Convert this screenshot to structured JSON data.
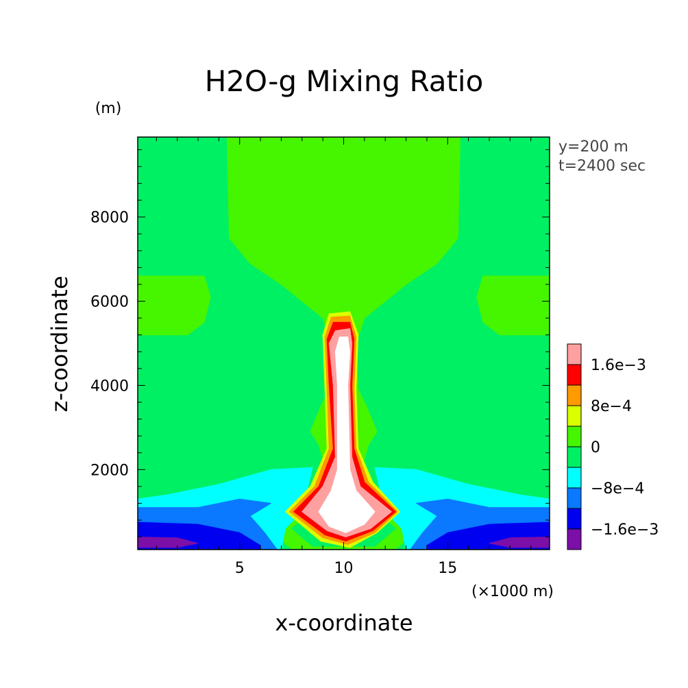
{
  "chart_data": {
    "type": "heatmap",
    "title": "H2O-g Mixing Ratio",
    "xlabel": "x-coordinate",
    "ylabel": "z-coordinate",
    "x_unit": "(×1000 m)",
    "y_unit": "(m)",
    "annotations": [
      "y=200 m",
      "t=2400 sec"
    ],
    "xlim": [
      0.1,
      19.9
    ],
    "ylim": [
      100,
      9900
    ],
    "x_ticks": [
      5,
      10,
      15
    ],
    "x_tick_labels": [
      "5",
      "10",
      "15"
    ],
    "y_ticks": [
      2000,
      4000,
      6000,
      8000
    ],
    "y_tick_labels": [
      "2000",
      "4000",
      "6000",
      "8000"
    ],
    "colorbar": {
      "levels": [
        -0.002,
        -0.0016,
        -0.0012,
        -0.0008,
        -0.0004,
        0,
        0.0004,
        0.0008,
        0.0012,
        0.0016,
        0.002
      ],
      "colors": [
        "#7b0fa8",
        "#0000f0",
        "#0a78ff",
        "#00ffff",
        "#00f064",
        "#46f500",
        "#dcff00",
        "#ff9a00",
        "#ff0000",
        "#ffa0a0"
      ],
      "label_values": [
        -0.0016,
        -0.0008,
        0,
        0.0008,
        0.0016
      ],
      "tick_labels": [
        "−1.6e−3",
        "−8e−4",
        "0",
        "8e−4",
        "1.6e−3"
      ]
    },
    "background_color": "#00f064",
    "contour_regions": [
      {
        "color": "#46f500",
        "points": [
          [
            4.4,
            9900
          ],
          [
            15.6,
            9900
          ],
          [
            15.5,
            7500
          ],
          [
            14.5,
            6900
          ],
          [
            13.0,
            6400
          ],
          [
            11.0,
            5600
          ],
          [
            10.6,
            5000
          ],
          [
            10.7,
            3900
          ],
          [
            11.1,
            3500
          ],
          [
            11.6,
            2900
          ],
          [
            11.2,
            2600
          ],
          [
            10.8,
            1900
          ],
          [
            12.0,
            1000
          ],
          [
            13.5,
            500
          ],
          [
            12.5,
            120
          ],
          [
            7.5,
            120
          ],
          [
            6.5,
            500
          ],
          [
            8.0,
            1000
          ],
          [
            9.2,
            1900
          ],
          [
            8.8,
            2600
          ],
          [
            8.4,
            2900
          ],
          [
            8.9,
            3500
          ],
          [
            9.3,
            3900
          ],
          [
            9.4,
            5000
          ],
          [
            9.0,
            5600
          ],
          [
            7.0,
            6400
          ],
          [
            5.5,
            6900
          ],
          [
            4.5,
            7500
          ]
        ]
      },
      {
        "color": "#46f500",
        "points": [
          [
            0.1,
            6600
          ],
          [
            3.3,
            6600
          ],
          [
            3.6,
            6100
          ],
          [
            3.3,
            5500
          ],
          [
            2.5,
            5200
          ],
          [
            0.1,
            5200
          ]
        ]
      },
      {
        "color": "#46f500",
        "points": [
          [
            19.9,
            6600
          ],
          [
            16.7,
            6600
          ],
          [
            16.4,
            6100
          ],
          [
            16.7,
            5500
          ],
          [
            17.5,
            5200
          ],
          [
            19.9,
            5200
          ]
        ]
      },
      {
        "color": "#00f064",
        "points": [
          [
            9.5,
            3300
          ],
          [
            10.5,
            3300
          ],
          [
            10.5,
            1900
          ],
          [
            11.5,
            1000
          ],
          [
            12.5,
            600
          ],
          [
            11.5,
            180
          ],
          [
            8.5,
            180
          ],
          [
            7.5,
            600
          ],
          [
            8.5,
            1000
          ],
          [
            9.5,
            1900
          ]
        ]
      },
      {
        "color": "#00ffff",
        "points": [
          [
            0.1,
            1300
          ],
          [
            1.5,
            1400
          ],
          [
            4.0,
            1650
          ],
          [
            6.5,
            2000
          ],
          [
            8.5,
            2050
          ],
          [
            8.0,
            1000
          ],
          [
            7.2,
            600
          ],
          [
            7.0,
            100
          ],
          [
            0.1,
            100
          ]
        ]
      },
      {
        "color": "#00ffff",
        "points": [
          [
            19.9,
            1300
          ],
          [
            18.5,
            1400
          ],
          [
            16.0,
            1650
          ],
          [
            13.5,
            2000
          ],
          [
            11.5,
            2050
          ],
          [
            12.0,
            1000
          ],
          [
            12.8,
            600
          ],
          [
            13.0,
            100
          ],
          [
            19.9,
            100
          ]
        ]
      },
      {
        "color": "#0a78ff",
        "points": [
          [
            0.1,
            1100
          ],
          [
            3.0,
            1100
          ],
          [
            5.0,
            1300
          ],
          [
            6.5,
            1200
          ],
          [
            5.5,
            900
          ],
          [
            6.2,
            500
          ],
          [
            6.8,
            100
          ],
          [
            0.1,
            100
          ]
        ]
      },
      {
        "color": "#0a78ff",
        "points": [
          [
            19.9,
            1100
          ],
          [
            17.0,
            1100
          ],
          [
            15.0,
            1300
          ],
          [
            13.5,
            1200
          ],
          [
            14.5,
            900
          ],
          [
            13.8,
            500
          ],
          [
            13.2,
            100
          ],
          [
            19.9,
            100
          ]
        ]
      },
      {
        "color": "#0000f0",
        "points": [
          [
            0.1,
            750
          ],
          [
            3.0,
            700
          ],
          [
            5.0,
            500
          ],
          [
            6.0,
            200
          ],
          [
            6.0,
            100
          ],
          [
            0.1,
            100
          ]
        ]
      },
      {
        "color": "#0000f0",
        "points": [
          [
            19.9,
            750
          ],
          [
            17.0,
            700
          ],
          [
            15.0,
            500
          ],
          [
            14.0,
            200
          ],
          [
            14.0,
            100
          ],
          [
            19.9,
            100
          ]
        ]
      },
      {
        "color": "#7b0fa8",
        "points": [
          [
            0.1,
            400
          ],
          [
            2.0,
            380
          ],
          [
            3.0,
            250
          ],
          [
            2.0,
            150
          ],
          [
            0.1,
            150
          ]
        ]
      },
      {
        "color": "#7b0fa8",
        "points": [
          [
            19.9,
            400
          ],
          [
            18.0,
            380
          ],
          [
            17.0,
            250
          ],
          [
            18.0,
            150
          ],
          [
            19.9,
            150
          ]
        ]
      },
      {
        "color": "#dcff00",
        "points": [
          [
            9.3,
            5700
          ],
          [
            10.3,
            5750
          ],
          [
            10.7,
            5200
          ],
          [
            10.6,
            3900
          ],
          [
            10.7,
            2500
          ],
          [
            11.4,
            1700
          ],
          [
            12.7,
            1000
          ],
          [
            11.6,
            500
          ],
          [
            10.3,
            150
          ],
          [
            8.9,
            300
          ],
          [
            7.2,
            1000
          ],
          [
            8.4,
            1600
          ],
          [
            9.2,
            2500
          ],
          [
            9.1,
            3900
          ],
          [
            9.0,
            5200
          ]
        ]
      },
      {
        "color": "#ff9a00",
        "points": [
          [
            9.4,
            5620
          ],
          [
            10.3,
            5650
          ],
          [
            10.6,
            5150
          ],
          [
            10.5,
            3900
          ],
          [
            10.6,
            2500
          ],
          [
            11.2,
            1700
          ],
          [
            12.6,
            1000
          ],
          [
            11.5,
            500
          ],
          [
            10.2,
            220
          ],
          [
            9.0,
            380
          ],
          [
            7.4,
            1000
          ],
          [
            8.6,
            1600
          ],
          [
            9.3,
            2500
          ],
          [
            9.2,
            3900
          ],
          [
            9.1,
            5150
          ]
        ]
      },
      {
        "color": "#ff0000",
        "points": [
          [
            9.5,
            5500
          ],
          [
            10.3,
            5500
          ],
          [
            10.5,
            5100
          ],
          [
            10.4,
            4000
          ],
          [
            10.5,
            2500
          ],
          [
            11.0,
            1700
          ],
          [
            12.5,
            1000
          ],
          [
            11.4,
            550
          ],
          [
            10.1,
            300
          ],
          [
            9.1,
            450
          ],
          [
            7.6,
            1000
          ],
          [
            8.8,
            1600
          ],
          [
            9.5,
            2500
          ],
          [
            9.3,
            4000
          ],
          [
            9.2,
            5100
          ]
        ]
      },
      {
        "color": "#ffa0a0",
        "points": [
          [
            9.6,
            5300
          ],
          [
            10.3,
            5350
          ],
          [
            10.4,
            5000
          ],
          [
            10.3,
            4000
          ],
          [
            10.4,
            2300
          ],
          [
            10.8,
            1600
          ],
          [
            12.3,
            1000
          ],
          [
            11.3,
            600
          ],
          [
            10.1,
            400
          ],
          [
            9.2,
            550
          ],
          [
            8.0,
            1000
          ],
          [
            9.0,
            1600
          ],
          [
            9.6,
            2300
          ],
          [
            9.5,
            4000
          ],
          [
            9.3,
            5000
          ]
        ]
      },
      {
        "color": "#ffffff",
        "points": [
          [
            9.8,
            5150
          ],
          [
            10.2,
            5150
          ],
          [
            10.3,
            4800
          ],
          [
            10.2,
            4000
          ],
          [
            10.3,
            2000
          ],
          [
            10.6,
            1500
          ],
          [
            11.5,
            1000
          ],
          [
            11.0,
            700
          ],
          [
            10.1,
            500
          ],
          [
            9.3,
            650
          ],
          [
            8.8,
            1000
          ],
          [
            9.4,
            1500
          ],
          [
            9.7,
            2000
          ],
          [
            9.7,
            4000
          ],
          [
            9.6,
            4800
          ]
        ]
      }
    ]
  }
}
